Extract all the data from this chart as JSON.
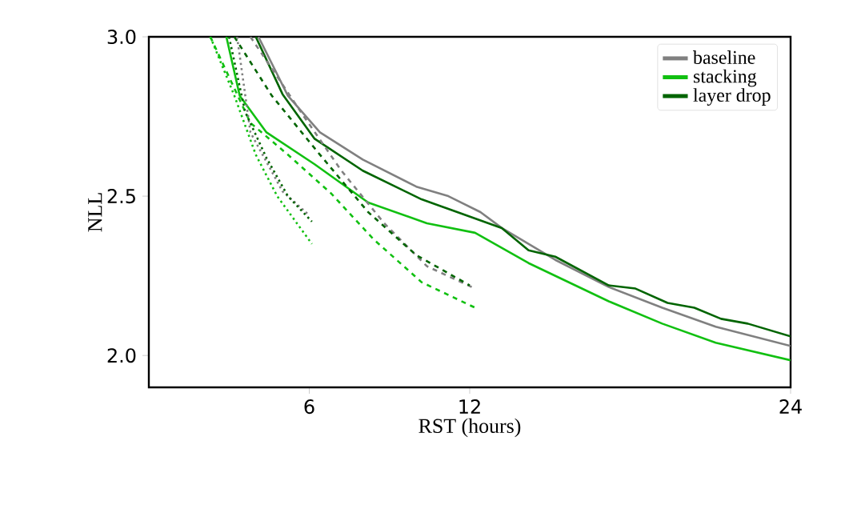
{
  "chart_data": {
    "type": "line",
    "xlabel": "RST (hours)",
    "ylabel": "NLL",
    "xlim": [
      0,
      24
    ],
    "ylim": [
      1.9,
      3.0
    ],
    "xticks": [
      6,
      12,
      24
    ],
    "yticks": [
      {
        "value": 2.0,
        "label": "2.0"
      },
      {
        "value": 2.5,
        "label": "2.5"
      },
      {
        "value": 3.0,
        "label": "3.0"
      }
    ],
    "legend": "top right",
    "grid": false,
    "marker": "none",
    "series": [
      {
        "name": "baseline",
        "color": "#808080",
        "line_style": "solid",
        "x": [
          4.1,
          5.2,
          6.4,
          8.0,
          10.0,
          11.2,
          12.4,
          13.2,
          15.2,
          17.2,
          19.2,
          21.2,
          24
        ],
        "values": [
          3.0,
          2.815,
          2.7,
          2.615,
          2.53,
          2.5,
          2.45,
          2.4,
          2.3,
          2.215,
          2.15,
          2.09,
          2.03
        ]
      },
      {
        "name": "stacking",
        "color": "#11c011",
        "line_style": "solid",
        "x": [
          2.9,
          3.4,
          4.4,
          6.2,
          8.2,
          10.4,
          12.2,
          14.2,
          17.2,
          19.2,
          21.2,
          24
        ],
        "values": [
          3.0,
          2.815,
          2.7,
          2.6,
          2.48,
          2.415,
          2.385,
          2.29,
          2.17,
          2.1,
          2.04,
          1.985
        ]
      },
      {
        "name": "layer drop",
        "color": "#006400",
        "line_style": "solid",
        "x": [
          4.0,
          5.0,
          6.2,
          8.0,
          10.2,
          11.2,
          13.2,
          14.2,
          15.2,
          17.2,
          18.2,
          19.4,
          20.4,
          21.4,
          22.4,
          24
        ],
        "values": [
          3.0,
          2.82,
          2.68,
          2.58,
          2.49,
          2.46,
          2.4,
          2.33,
          2.31,
          2.22,
          2.21,
          2.165,
          2.15,
          2.115,
          2.1,
          2.06
        ]
      },
      {
        "color": "#808080",
        "line_style": "dashed",
        "x": [
          3.8,
          5.8,
          7.2,
          8.8,
          10.4,
          12.2
        ],
        "values": [
          3.0,
          2.75,
          2.58,
          2.415,
          2.28,
          2.21
        ]
      },
      {
        "color": "#11c011",
        "line_style": "dashed",
        "x": [
          2.3,
          3.8,
          5.2,
          6.8,
          8.4,
          10.2,
          12.2
        ],
        "values": [
          3.0,
          2.73,
          2.63,
          2.51,
          2.365,
          2.23,
          2.15
        ]
      },
      {
        "color": "#006400",
        "line_style": "dashed",
        "x": [
          3.2,
          4.6,
          6.4,
          8.2,
          10.0,
          12.0
        ],
        "values": [
          3.0,
          2.815,
          2.63,
          2.45,
          2.315,
          2.22
        ]
      },
      {
        "color": "#808080",
        "line_style": "dotted",
        "x": [
          3.3,
          3.8,
          5.0,
          6.0
        ],
        "values": [
          3.0,
          2.7,
          2.515,
          2.44
        ]
      },
      {
        "color": "#11c011",
        "line_style": "dotted",
        "x": [
          2.3,
          3.2,
          4.0,
          4.8,
          6.1
        ],
        "values": [
          3.0,
          2.815,
          2.63,
          2.5,
          2.35
        ]
      },
      {
        "color": "#006400",
        "line_style": "dotted",
        "x": [
          3.0,
          3.6,
          4.4,
          5.2,
          6.1
        ],
        "values": [
          3.0,
          2.765,
          2.62,
          2.5,
          2.42
        ]
      }
    ]
  }
}
